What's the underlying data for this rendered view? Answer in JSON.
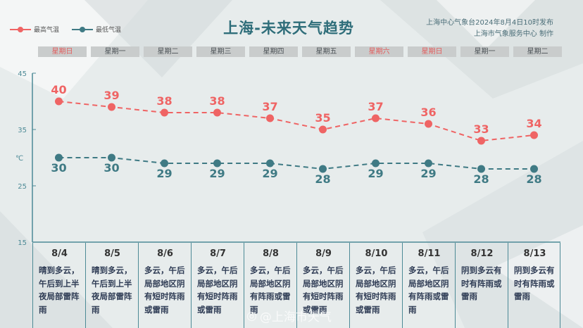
{
  "title": "上海-未来天气趋势",
  "source_line1": "上海中心气象台2024年8月4日10时发布",
  "source_line2": "上海市气象服务中心 制作",
  "watermark": "@上海市天气",
  "colors": {
    "high": "#ef6464",
    "low": "#3f7a84",
    "weekday_text": "#4a5055",
    "weekend_text": "#e25c5c"
  },
  "chart_data": {
    "type": "line",
    "categories": [
      "8/4",
      "8/5",
      "8/6",
      "8/7",
      "8/8",
      "8/9",
      "8/10",
      "8/11",
      "8/12",
      "8/13"
    ],
    "weekdays": [
      "星期日",
      "星期一",
      "星期二",
      "星期三",
      "星期四",
      "星期五",
      "星期六",
      "星期日",
      "星期一",
      "星期二"
    ],
    "weekend_flags": [
      true,
      false,
      false,
      false,
      false,
      false,
      true,
      true,
      false,
      false
    ],
    "series": [
      {
        "name": "最高气温",
        "values": [
          40,
          39,
          38,
          38,
          37,
          35,
          37,
          36,
          33,
          34
        ]
      },
      {
        "name": "最低气温",
        "values": [
          30,
          30,
          29,
          29,
          29,
          28,
          29,
          29,
          28,
          28
        ]
      }
    ],
    "ylabel": "℃",
    "ylim": [
      15,
      45
    ],
    "yticks": [
      15,
      25,
      35,
      45
    ],
    "descriptions": [
      "晴到多云，午后到上半夜局部雷阵雨",
      "晴到多云，午后到上半夜局部雷阵雨",
      "多云，午后局部地区阴有短时阵雨或雷雨",
      "多云，午后局部地区阴有短时阵雨或雷雨",
      "多云，午后局部地区阴有阵雨或雷雨",
      "多云，午后局部地区阴有短时阵雨或雷雨",
      "多云，午后局部地区阴有短时阵雨或雷雨",
      "多云，午后局部地区阴有阵雨或雷雨",
      "阴到多云有时有阵雨或雷雨",
      "阴到多云有时有阵雨或雷雨"
    ]
  }
}
